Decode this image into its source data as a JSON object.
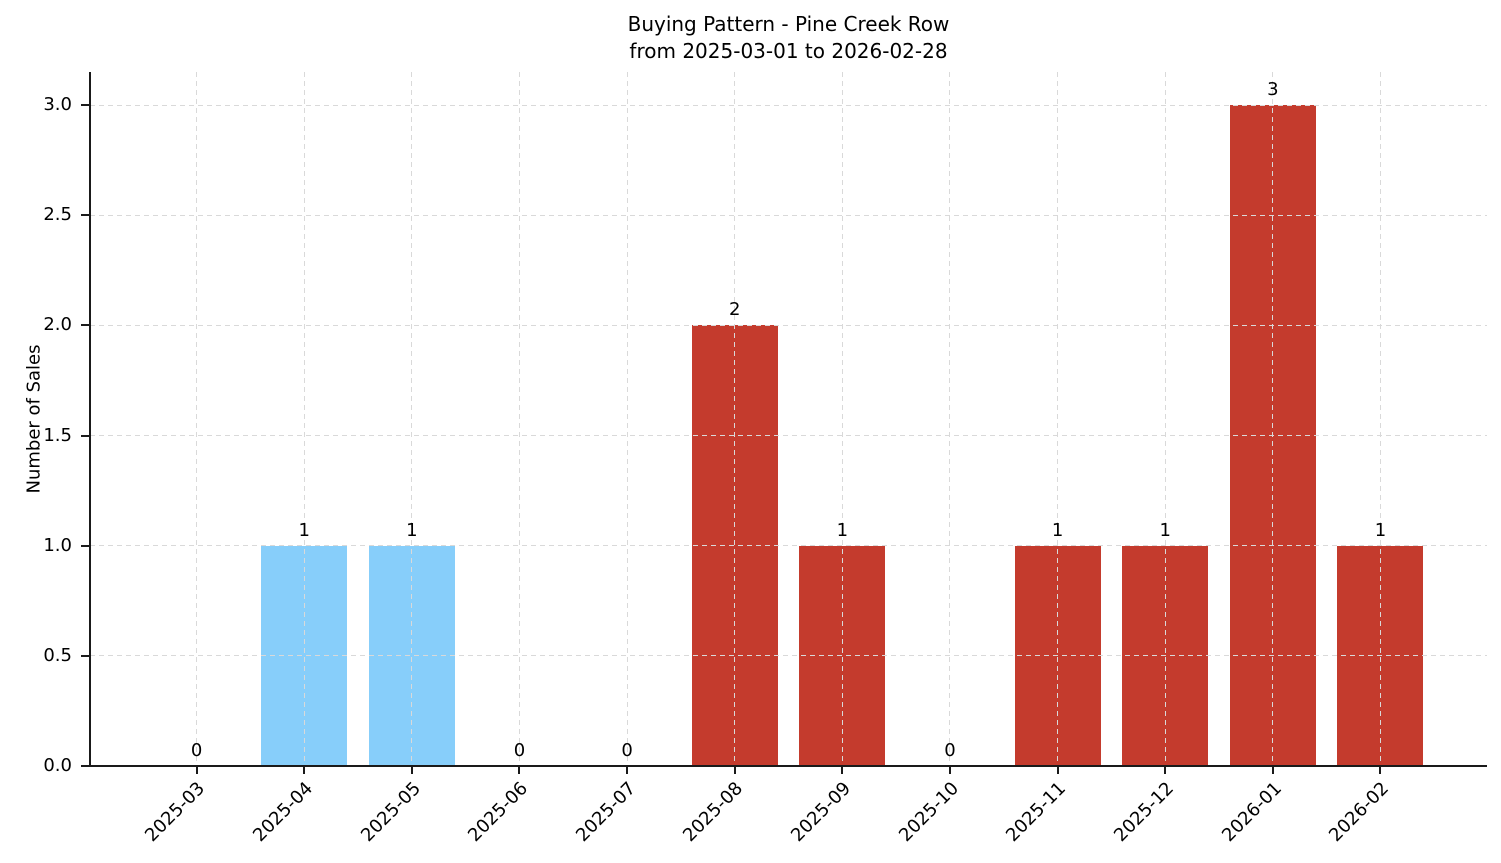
{
  "chart_data": {
    "type": "bar",
    "title": "Buying Pattern - Pine Creek Row",
    "subtitle": "from 2025-03-01 to 2026-02-28",
    "xlabel": "",
    "ylabel": "Number of Sales",
    "categories": [
      "2025-03",
      "2025-04",
      "2025-05",
      "2025-06",
      "2025-07",
      "2025-08",
      "2025-09",
      "2025-10",
      "2025-11",
      "2025-12",
      "2026-01",
      "2026-02"
    ],
    "values": [
      0,
      1,
      1,
      0,
      0,
      2,
      1,
      0,
      1,
      1,
      3,
      1
    ],
    "value_labels": [
      "0",
      "1",
      "1",
      "0",
      "0",
      "2",
      "1",
      "0",
      "1",
      "1",
      "3",
      "1"
    ],
    "bar_colors": [
      "#c43b2d",
      "#87cefa",
      "#87cefa",
      "#c43b2d",
      "#c43b2d",
      "#c43b2d",
      "#c43b2d",
      "#c43b2d",
      "#c43b2d",
      "#c43b2d",
      "#c43b2d",
      "#c43b2d"
    ],
    "highlight_color": "#87cefa",
    "default_color": "#c43b2d",
    "ytick_labels": [
      "0.0",
      "0.5",
      "1.0",
      "1.5",
      "2.0",
      "2.5",
      "3.0"
    ],
    "ytick_values": [
      0,
      0.5,
      1,
      1.5,
      2,
      2.5,
      3
    ],
    "ylim": [
      0,
      3.15
    ],
    "grid": true,
    "grid_style": "dashed",
    "grid_color": "#d9d9d9",
    "axis_color": "#1a1a1a",
    "xtick_rotation_deg": 45,
    "legend": null
  }
}
